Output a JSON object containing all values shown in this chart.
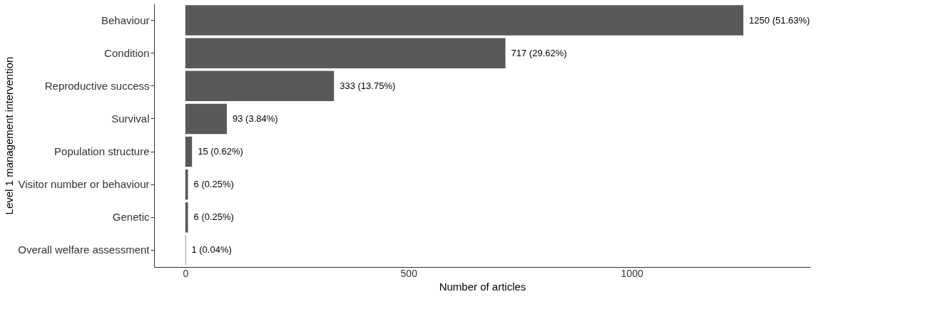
{
  "chart_data": {
    "type": "bar",
    "orientation": "horizontal",
    "xlabel": "Number of articles",
    "ylabel": "Level 1 management intervention",
    "categories": [
      "Behaviour",
      "Condition",
      "Reproductive success",
      "Survival",
      "Population structure",
      "Visitor number or behaviour",
      "Genetic",
      "Overall welfare assessment"
    ],
    "values": [
      1250,
      717,
      333,
      93,
      15,
      6,
      6,
      1
    ],
    "value_labels": [
      "1250 (51.63%)",
      "717 (29.62%)",
      "333 (13.75%)",
      "93 (3.84%)",
      "15 (0.62%)",
      "6 (0.25%)",
      "6 (0.25%)",
      "1 (0.04%)"
    ],
    "color": "#595959",
    "xlim": [
      -70,
      1400
    ],
    "xticks": [
      0,
      500,
      {
        "value": 1000,
        "label": "1000"
      }
    ],
    "grid": false
  }
}
